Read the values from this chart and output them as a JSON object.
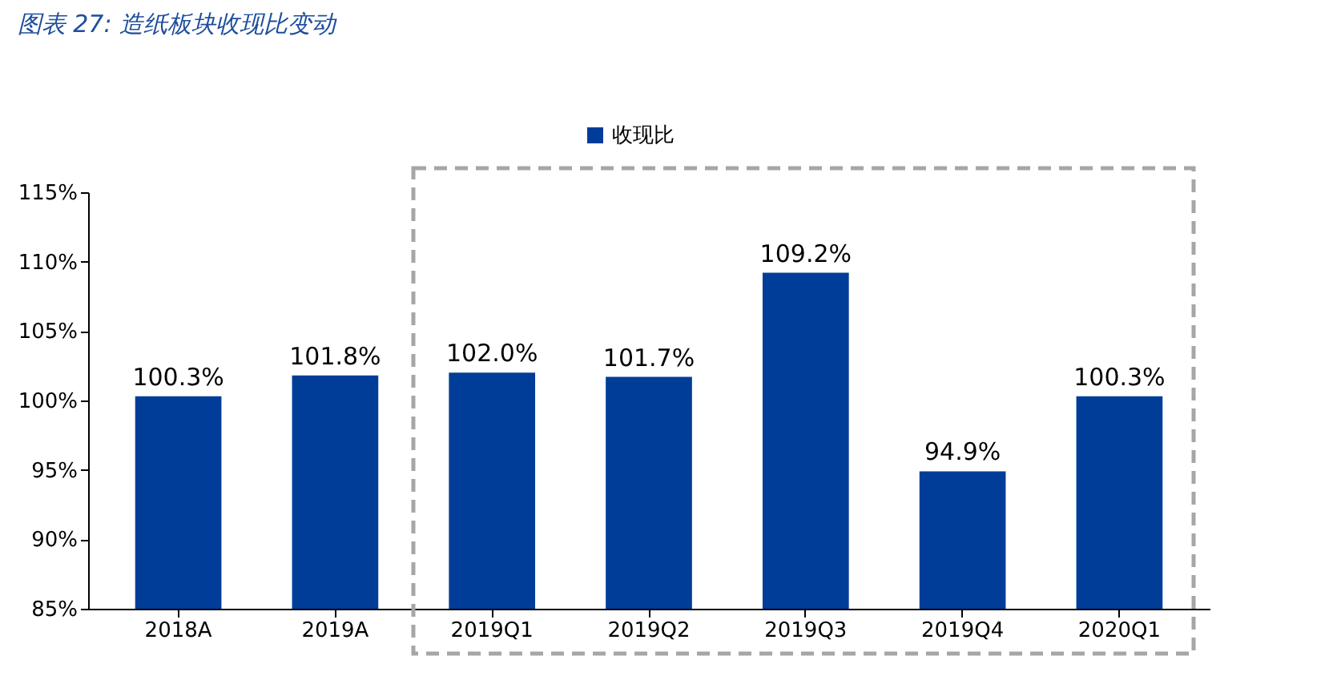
{
  "chart_data": {
    "type": "bar",
    "title": "图表 27: 造纸板块收现比变动",
    "categories": [
      "2018A",
      "2019A",
      "2019Q1",
      "2019Q2",
      "2019Q3",
      "2019Q4",
      "2020Q1"
    ],
    "series": [
      {
        "name": "收现比",
        "color": "#003d99",
        "values": [
          100.3,
          101.8,
          102.0,
          101.7,
          109.2,
          94.9,
          100.3
        ],
        "value_labels": [
          "100.3%",
          "101.8%",
          "102.0%",
          "101.7%",
          "109.2%",
          "94.9%",
          "100.3%"
        ]
      }
    ],
    "ylim": [
      85,
      115
    ],
    "yticks": [
      {
        "value": 85,
        "label": "85%"
      },
      {
        "value": 90,
        "label": "90%"
      },
      {
        "value": 95,
        "label": "95%"
      },
      {
        "value": 100,
        "label": "100%"
      },
      {
        "value": 105,
        "label": "105%"
      },
      {
        "value": 110,
        "label": "110%"
      },
      {
        "value": 115,
        "label": "115%"
      }
    ],
    "legend": "top",
    "grid": false
  }
}
